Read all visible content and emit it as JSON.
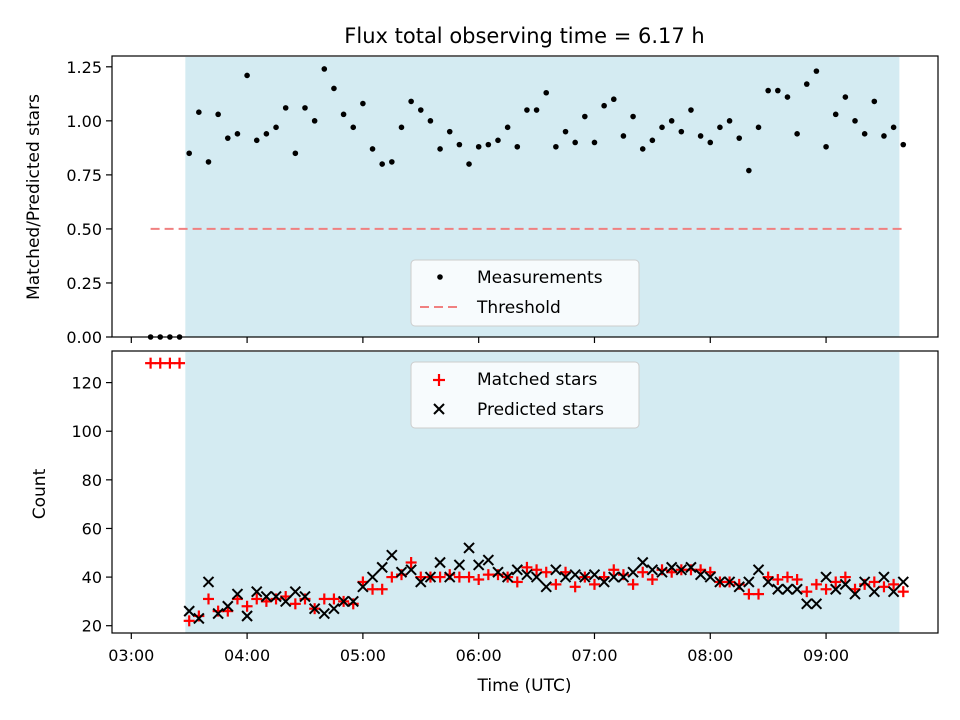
{
  "title": "Flux total observing time = 6.17 h",
  "colors": {
    "observing_band": "#add8e6",
    "threshold": "#f08080",
    "matched": "#ff0000",
    "predicted": "#000000",
    "measurement": "#000000"
  },
  "x_axis": {
    "label": "Time (UTC)",
    "range": [
      "02:50",
      "09:58"
    ],
    "ticks": [
      "03:00",
      "04:00",
      "05:00",
      "06:00",
      "07:00",
      "08:00",
      "09:00"
    ]
  },
  "chart_data": [
    {
      "type": "scatter",
      "panel": "top",
      "ylabel": "Matched/Predicted stars",
      "ylim": [
        0,
        1.3
      ],
      "yticks": [
        "0.00",
        "0.25",
        "0.50",
        "0.75",
        "1.00",
        "1.25"
      ],
      "observing_window": [
        "03:28",
        "09:38"
      ],
      "legend_position": "bottom-center",
      "series": [
        {
          "name": "Measurements",
          "marker": "dot",
          "x": [
            "03:10",
            "03:15",
            "03:20",
            "03:25",
            "03:30",
            "03:35",
            "03:40",
            "03:45",
            "03:50",
            "03:55",
            "04:00",
            "04:05",
            "04:10",
            "04:15",
            "04:20",
            "04:25",
            "04:30",
            "04:35",
            "04:40",
            "04:45",
            "04:50",
            "04:55",
            "05:00",
            "05:05",
            "05:10",
            "05:15",
            "05:20",
            "05:25",
            "05:30",
            "05:35",
            "05:40",
            "05:45",
            "05:50",
            "05:55",
            "06:00",
            "06:05",
            "06:10",
            "06:15",
            "06:20",
            "06:25",
            "06:30",
            "06:35",
            "06:40",
            "06:45",
            "06:50",
            "06:55",
            "07:00",
            "07:05",
            "07:10",
            "07:15",
            "07:20",
            "07:25",
            "07:30",
            "07:35",
            "07:40",
            "07:45",
            "07:50",
            "07:55",
            "08:00",
            "08:05",
            "08:10",
            "08:15",
            "08:20",
            "08:25",
            "08:30",
            "08:35",
            "08:40",
            "08:45",
            "08:50",
            "08:55",
            "09:00",
            "09:05",
            "09:10",
            "09:15",
            "09:20",
            "09:25",
            "09:30",
            "09:35",
            "09:40"
          ],
          "y": [
            0,
            0,
            0,
            0,
            0.85,
            1.04,
            0.81,
            1.03,
            0.92,
            0.94,
            1.21,
            0.91,
            0.94,
            0.97,
            1.06,
            0.85,
            1.06,
            1.0,
            1.24,
            1.15,
            1.03,
            0.97,
            1.08,
            0.87,
            0.8,
            0.81,
            0.97,
            1.09,
            1.05,
            1.0,
            0.87,
            0.95,
            0.89,
            0.8,
            0.88,
            0.89,
            0.91,
            0.97,
            0.88,
            1.05,
            1.05,
            1.13,
            0.88,
            0.95,
            0.9,
            1.02,
            0.9,
            1.07,
            1.1,
            0.93,
            1.02,
            0.87,
            0.91,
            0.97,
            1.0,
            0.95,
            1.05,
            0.93,
            0.9,
            0.97,
            1.0,
            0.92,
            0.77,
            0.97,
            1.14,
            1.14,
            1.11,
            0.94,
            1.17,
            1.23,
            0.88,
            1.03,
            1.11,
            1.0,
            0.94,
            1.09,
            0.93,
            0.97,
            0.89
          ]
        },
        {
          "name": "Threshold",
          "style": "dashed",
          "x": [
            "03:10",
            "09:40"
          ],
          "y": [
            0.5,
            0.5
          ]
        }
      ]
    },
    {
      "type": "scatter",
      "panel": "bottom",
      "ylabel": "Count",
      "ylim": [
        17,
        133
      ],
      "yticks": [
        "20",
        "40",
        "60",
        "80",
        "100",
        "120"
      ],
      "legend_position": "top-center",
      "x": [
        "03:10",
        "03:15",
        "03:20",
        "03:25",
        "03:30",
        "03:35",
        "03:40",
        "03:45",
        "03:50",
        "03:55",
        "04:00",
        "04:05",
        "04:10",
        "04:15",
        "04:20",
        "04:25",
        "04:30",
        "04:35",
        "04:40",
        "04:45",
        "04:50",
        "04:55",
        "05:00",
        "05:05",
        "05:10",
        "05:15",
        "05:20",
        "05:25",
        "05:30",
        "05:35",
        "05:40",
        "05:45",
        "05:50",
        "05:55",
        "06:00",
        "06:05",
        "06:10",
        "06:15",
        "06:20",
        "06:25",
        "06:30",
        "06:35",
        "06:40",
        "06:45",
        "06:50",
        "06:55",
        "07:00",
        "07:05",
        "07:10",
        "07:15",
        "07:20",
        "07:25",
        "07:30",
        "07:35",
        "07:40",
        "07:45",
        "07:50",
        "07:55",
        "08:00",
        "08:05",
        "08:10",
        "08:15",
        "08:20",
        "08:25",
        "08:30",
        "08:35",
        "08:40",
        "08:45",
        "08:50",
        "08:55",
        "09:00",
        "09:05",
        "09:10",
        "09:15",
        "09:20",
        "09:25",
        "09:30",
        "09:35",
        "09:40"
      ],
      "series": [
        {
          "name": "Matched stars",
          "marker": "plus",
          "y": [
            128,
            128,
            128,
            128,
            22,
            24,
            31,
            26,
            26,
            31,
            28,
            31,
            30,
            31,
            32,
            29,
            31,
            27,
            31,
            31,
            30,
            29,
            38,
            35,
            35,
            40,
            41,
            46,
            40,
            40,
            40,
            41,
            40,
            40,
            39,
            41,
            41,
            40,
            38,
            44,
            43,
            42,
            37,
            42,
            36,
            40,
            37,
            40,
            43,
            41,
            37,
            42,
            39,
            43,
            42,
            43,
            43,
            43,
            42,
            38,
            38,
            37,
            33,
            33,
            40,
            39,
            40,
            39,
            34,
            37,
            35,
            38,
            40,
            35,
            37,
            38,
            36,
            37,
            34
          ]
        },
        {
          "name": "Predicted stars",
          "marker": "x",
          "y": [
            null,
            null,
            null,
            null,
            26,
            23,
            38,
            25,
            28,
            33,
            24,
            34,
            32,
            32,
            30,
            34,
            32,
            27,
            25,
            27,
            30,
            30,
            36,
            40,
            44,
            49,
            42,
            43,
            38,
            40,
            46,
            40,
            45,
            52,
            45,
            47,
            42,
            40,
            43,
            41,
            40,
            36,
            43,
            40,
            41,
            40,
            41,
            38,
            40,
            40,
            42,
            46,
            43,
            42,
            44,
            43,
            44,
            41,
            40,
            38,
            38,
            36,
            38,
            43,
            38,
            35,
            35,
            35,
            29,
            29,
            40,
            35,
            37,
            33,
            38,
            34,
            40,
            34,
            38
          ]
        }
      ]
    }
  ]
}
